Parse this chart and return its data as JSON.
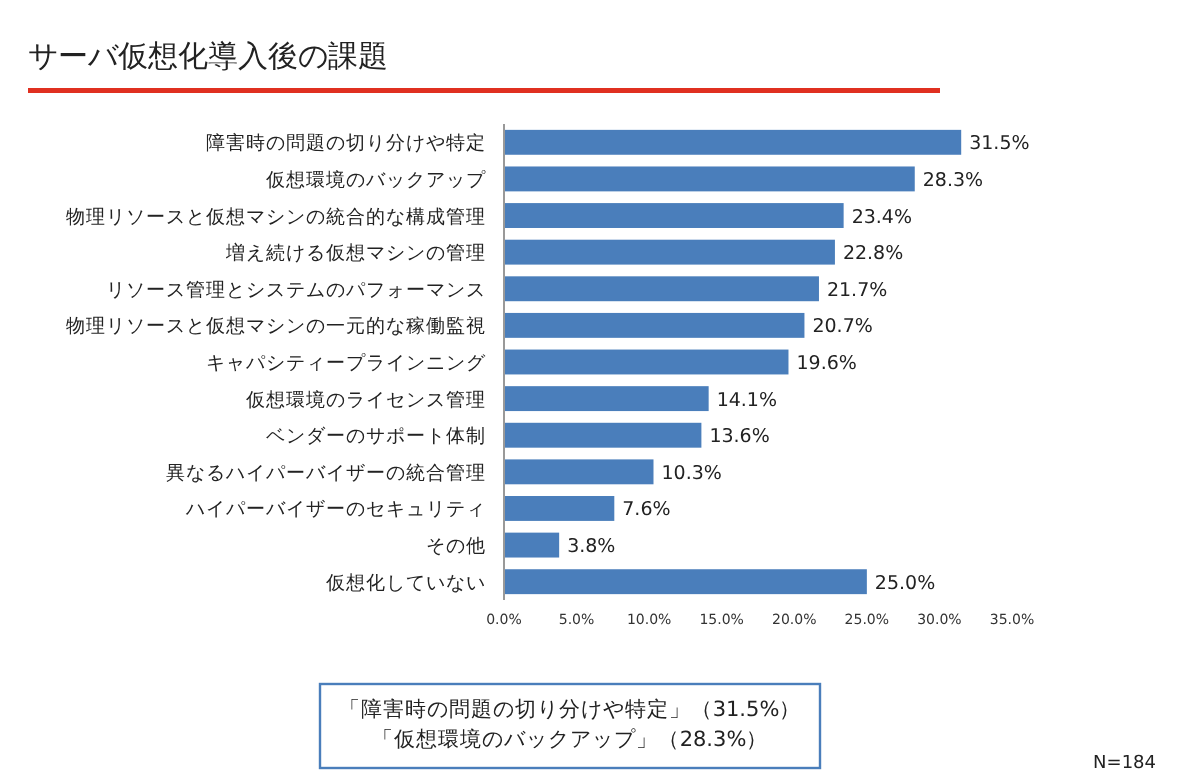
{
  "chart_data": {
    "type": "bar",
    "orientation": "horizontal",
    "title": "サーバ仮想化導入後の課題",
    "categories": [
      "障害時の問題の切り分けや特定",
      "仮想環境のバックアップ",
      "物理リソースと仮想マシンの統合的な構成管理",
      "増え続ける仮想マシンの管理",
      "リソース管理とシステムのパフォーマンス",
      "物理リソースと仮想マシンの一元的な稼働監視",
      "キャパシティープラインニング",
      "仮想環境のライセンス管理",
      "ベンダーのサポート体制",
      "異なるハイパーバイザーの統合管理",
      "ハイパーバイザーのセキュリティ",
      "その他",
      "仮想化していない"
    ],
    "values": [
      31.5,
      28.3,
      23.4,
      22.8,
      21.7,
      20.7,
      19.6,
      14.1,
      13.6,
      10.3,
      7.6,
      3.8,
      25.0
    ],
    "value_labels": [
      "31.5%",
      "28.3%",
      "23.4%",
      "22.8%",
      "21.7%",
      "20.7%",
      "19.6%",
      "14.1%",
      "13.6%",
      "10.3%",
      "7.6%",
      "3.8%",
      "25.0%"
    ],
    "color": "#4a7ebb",
    "xlim": [
      0,
      35
    ],
    "xticks": [
      {
        "value": 0,
        "label": "0.0%"
      },
      {
        "value": 5,
        "label": "5.0%"
      },
      {
        "value": 10,
        "label": "10.0%"
      },
      {
        "value": 15,
        "label": "15.0%"
      },
      {
        "value": 20,
        "label": "20.0%"
      },
      {
        "value": 25,
        "label": "25.0%"
      },
      {
        "value": 30,
        "label": "30.0%"
      },
      {
        "value": 35,
        "label": "35.0%"
      }
    ],
    "annotations": [
      "「障害時の問題の切り分けや特定」（31.5%）",
      "「仮想環境のバックアップ」（28.3%）",
      "N=184"
    ]
  }
}
